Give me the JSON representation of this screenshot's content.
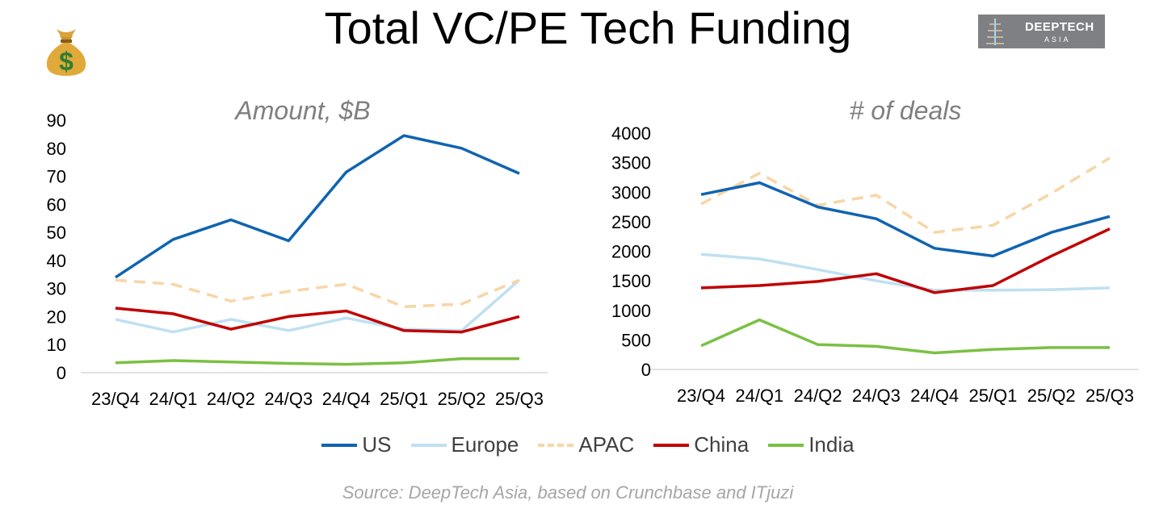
{
  "title": "Total VC/PE Tech Funding",
  "logo": {
    "line1": "DEEPTECH",
    "line2": "ASIA"
  },
  "source": "Source: DeepTech Asia, based on Crunchbase and ITjuzi",
  "icon": "money-bag-icon",
  "chart_data": [
    {
      "type": "line",
      "title": "Amount, $B",
      "categories": [
        "23/Q4",
        "24/Q1",
        "24/Q2",
        "24/Q3",
        "24/Q4",
        "25/Q1",
        "25/Q2",
        "25/Q3"
      ],
      "ylim": [
        0,
        90
      ],
      "yticks": [
        0,
        10,
        20,
        30,
        40,
        50,
        60,
        70,
        80,
        90
      ],
      "grid": false,
      "series": [
        {
          "name": "US",
          "color": "#0f64b0",
          "dashed": false,
          "values": [
            34,
            47.5,
            54.5,
            47,
            71.5,
            84.5,
            80,
            71
          ]
        },
        {
          "name": "Europe",
          "color": "#bfe0f2",
          "dashed": false,
          "values": [
            19,
            14.5,
            19,
            15,
            19.5,
            15.5,
            15,
            33
          ]
        },
        {
          "name": "APAC",
          "color": "#f9d5a6",
          "dashed": true,
          "values": [
            33,
            31.5,
            25.5,
            29,
            31.5,
            23.5,
            24.5,
            33
          ]
        },
        {
          "name": "China",
          "color": "#c00000",
          "dashed": false,
          "values": [
            23,
            21,
            15.5,
            20,
            22,
            15,
            14.5,
            20
          ]
        },
        {
          "name": "India",
          "color": "#7ac143",
          "dashed": false,
          "values": [
            3.5,
            4.3,
            3.8,
            3.3,
            3,
            3.5,
            5,
            5
          ]
        }
      ]
    },
    {
      "type": "line",
      "title": "# of deals",
      "categories": [
        "23/Q4",
        "24/Q1",
        "24/Q2",
        "24/Q3",
        "24/Q4",
        "25/Q1",
        "25/Q2",
        "25/Q3"
      ],
      "ylim": [
        0,
        4000
      ],
      "yticks": [
        0,
        500,
        1000,
        1500,
        2000,
        2500,
        3000,
        3500,
        4000
      ],
      "grid": false,
      "series": [
        {
          "name": "US",
          "color": "#0f64b0",
          "dashed": false,
          "values": [
            2960,
            3160,
            2750,
            2550,
            2050,
            1920,
            2320,
            2590
          ]
        },
        {
          "name": "Europe",
          "color": "#bfe0f2",
          "dashed": false,
          "values": [
            1950,
            1870,
            1690,
            1500,
            1340,
            1340,
            1350,
            1380
          ]
        },
        {
          "name": "APAC",
          "color": "#f9d5a6",
          "dashed": true,
          "values": [
            2800,
            3320,
            2780,
            2950,
            2320,
            2440,
            2980,
            3580
          ]
        },
        {
          "name": "China",
          "color": "#c00000",
          "dashed": false,
          "values": [
            1380,
            1420,
            1490,
            1620,
            1300,
            1420,
            1920,
            2380
          ]
        },
        {
          "name": "India",
          "color": "#7ac143",
          "dashed": false,
          "values": [
            400,
            840,
            420,
            390,
            280,
            340,
            370,
            370
          ]
        }
      ]
    }
  ],
  "legend": {
    "position": "bottom",
    "items": [
      "US",
      "Europe",
      "APAC",
      "China",
      "India"
    ]
  }
}
